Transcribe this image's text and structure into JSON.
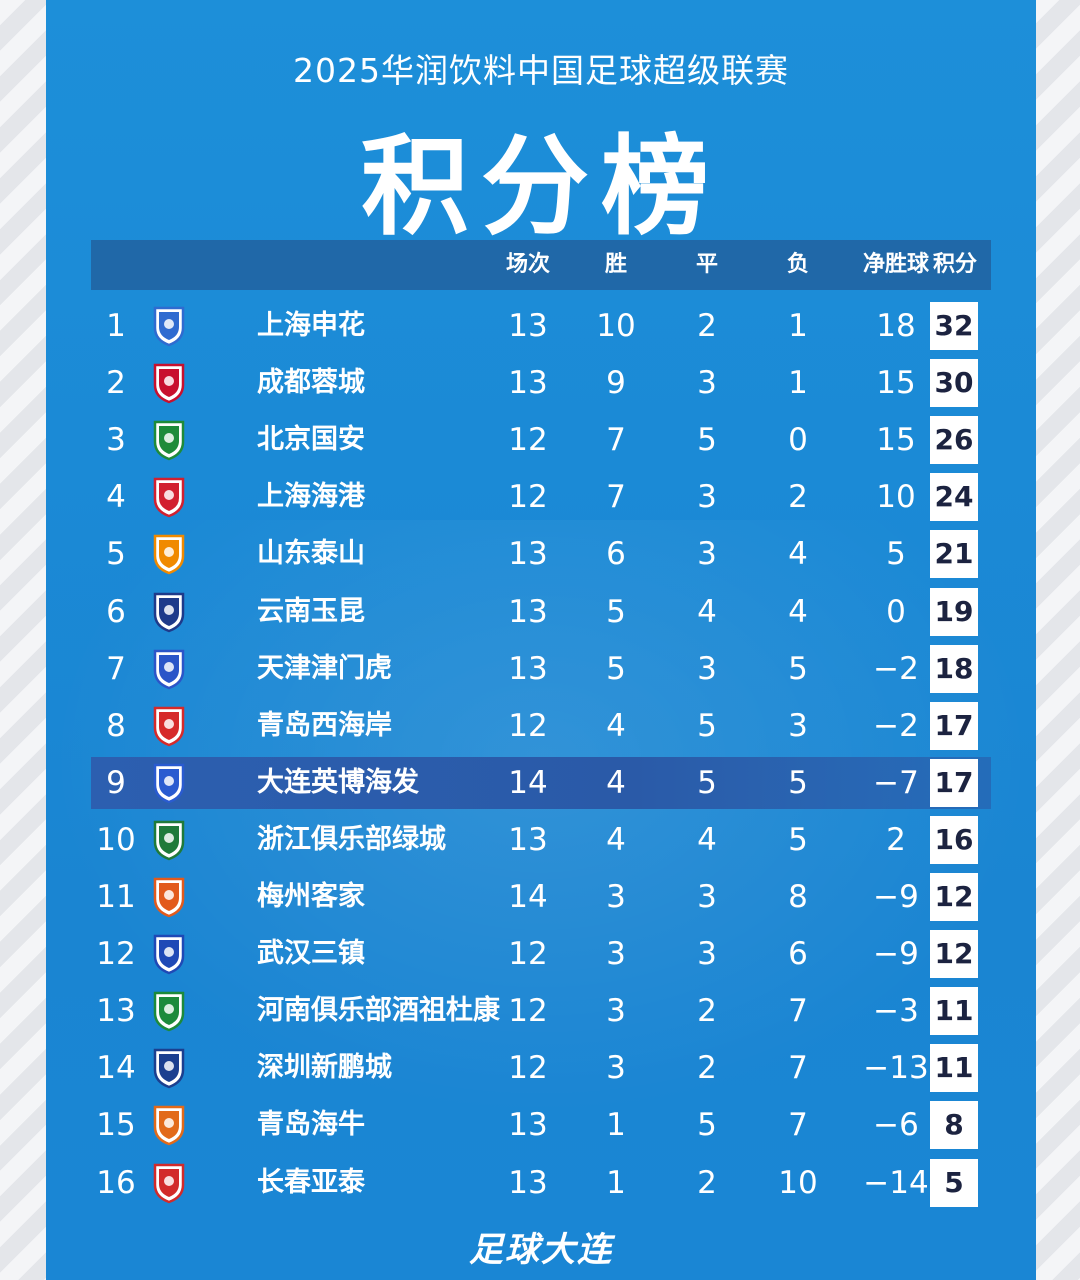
{
  "header": {
    "subtitle": "2025华润饮料中国足球超级联赛",
    "title": "积分榜"
  },
  "columns": {
    "played": "场次",
    "win": "胜",
    "draw": "平",
    "loss": "负",
    "goal_diff": "净胜球",
    "points": "积分"
  },
  "colors": {
    "background": "#1b8ad6",
    "header_bar": "#2068a8",
    "highlight_row": "#2c5fb0",
    "points_box": "#ffffff",
    "points_text": "#1c2340"
  },
  "teams": [
    {
      "rank": "1",
      "name": "上海申花",
      "played": "13",
      "win": "10",
      "draw": "2",
      "loss": "1",
      "gd": "18",
      "pts": "32",
      "logo": "shenhua-logo",
      "logo_color": "#2f6bd0",
      "highlight": false
    },
    {
      "rank": "2",
      "name": "成都蓉城",
      "played": "13",
      "win": "9",
      "draw": "3",
      "loss": "1",
      "gd": "15",
      "pts": "30",
      "logo": "chengdu-logo",
      "logo_color": "#c8102e",
      "highlight": false
    },
    {
      "rank": "3",
      "name": "北京国安",
      "played": "12",
      "win": "7",
      "draw": "5",
      "loss": "0",
      "gd": "15",
      "pts": "26",
      "logo": "guoan-logo",
      "logo_color": "#1e8b3a",
      "highlight": false
    },
    {
      "rank": "4",
      "name": "上海海港",
      "played": "12",
      "win": "7",
      "draw": "3",
      "loss": "2",
      "gd": "10",
      "pts": "24",
      "logo": "haigang-logo",
      "logo_color": "#d22030",
      "highlight": false
    },
    {
      "rank": "5",
      "name": "山东泰山",
      "played": "13",
      "win": "6",
      "draw": "3",
      "loss": "4",
      "gd": "5",
      "pts": "21",
      "logo": "taishan-logo",
      "logo_color": "#f08a00",
      "highlight": false
    },
    {
      "rank": "6",
      "name": "云南玉昆",
      "played": "13",
      "win": "5",
      "draw": "4",
      "loss": "4",
      "gd": "0",
      "pts": "19",
      "logo": "yukun-logo",
      "logo_color": "#1e3a8a",
      "highlight": false
    },
    {
      "rank": "7",
      "name": "天津津门虎",
      "played": "13",
      "win": "5",
      "draw": "3",
      "loss": "5",
      "gd": "−2",
      "pts": "18",
      "logo": "jinmenhu-logo",
      "logo_color": "#2b55c8",
      "highlight": false
    },
    {
      "rank": "8",
      "name": "青岛西海岸",
      "played": "12",
      "win": "4",
      "draw": "5",
      "loss": "3",
      "gd": "−2",
      "pts": "17",
      "logo": "xihaian-logo",
      "logo_color": "#d62a2a",
      "highlight": false
    },
    {
      "rank": "9",
      "name": "大连英博海发",
      "played": "14",
      "win": "4",
      "draw": "5",
      "loss": "5",
      "gd": "−7",
      "pts": "17",
      "logo": "dalian-logo",
      "logo_color": "#2a5bd0",
      "highlight": true
    },
    {
      "rank": "10",
      "name": "浙江俱乐部绿城",
      "played": "13",
      "win": "4",
      "draw": "4",
      "loss": "5",
      "gd": "2",
      "pts": "16",
      "logo": "zhejiang-logo",
      "logo_color": "#1f7a3a",
      "highlight": false
    },
    {
      "rank": "11",
      "name": "梅州客家",
      "played": "14",
      "win": "3",
      "draw": "3",
      "loss": "8",
      "gd": "−9",
      "pts": "12",
      "logo": "meizhou-logo",
      "logo_color": "#e25a1c",
      "highlight": false
    },
    {
      "rank": "12",
      "name": "武汉三镇",
      "played": "12",
      "win": "3",
      "draw": "3",
      "loss": "6",
      "gd": "−9",
      "pts": "12",
      "logo": "wuhan-logo",
      "logo_color": "#1f49b6",
      "highlight": false
    },
    {
      "rank": "13",
      "name": "河南俱乐部酒祖杜康",
      "played": "12",
      "win": "3",
      "draw": "2",
      "loss": "7",
      "gd": "−3",
      "pts": "11",
      "logo": "henan-logo",
      "logo_color": "#1d8a3b",
      "highlight": false
    },
    {
      "rank": "14",
      "name": "深圳新鹏城",
      "played": "12",
      "win": "3",
      "draw": "2",
      "loss": "7",
      "gd": "−13",
      "pts": "11",
      "logo": "shenzhen-logo",
      "logo_color": "#1b3f8f",
      "highlight": false
    },
    {
      "rank": "15",
      "name": "青岛海牛",
      "played": "13",
      "win": "1",
      "draw": "5",
      "loss": "7",
      "gd": "−6",
      "pts": "8",
      "logo": "hainiu-logo",
      "logo_color": "#e26a1a",
      "highlight": false
    },
    {
      "rank": "16",
      "name": "长春亚泰",
      "played": "13",
      "win": "1",
      "draw": "2",
      "loss": "10",
      "gd": "−14",
      "pts": "5",
      "logo": "yatai-logo",
      "logo_color": "#d22a2a",
      "highlight": false
    }
  ],
  "footer": {
    "brand": "足球大连"
  }
}
